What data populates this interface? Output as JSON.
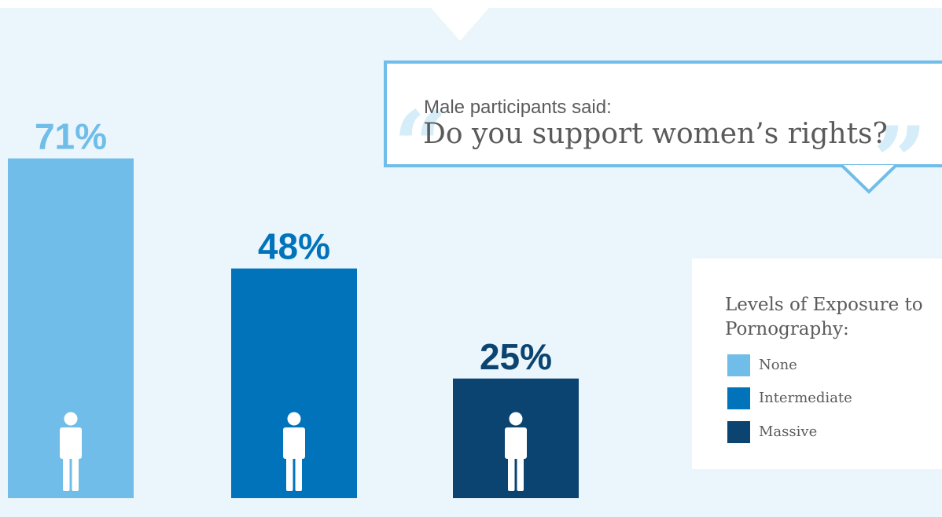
{
  "question": {
    "intro": "Male participants said:",
    "text": "Do you support women’s rights?",
    "open_quote": "“",
    "close_quote": "”"
  },
  "legend": {
    "title": "Levels of Exposure to Pornography:",
    "items": [
      {
        "label": "None",
        "color": "#6fbde8"
      },
      {
        "label": "Intermediate",
        "color": "#0073bb"
      },
      {
        "label": "Massive",
        "color": "#0b4470"
      }
    ]
  },
  "colors": {
    "background": "#eaf5fc",
    "bubble_border": "#6fbde8",
    "figure": "#ffffff",
    "text": "#5b5b5b"
  },
  "chart_data": {
    "type": "bar",
    "categories": [
      "None",
      "Intermediate",
      "Massive"
    ],
    "values": [
      71,
      48,
      25
    ],
    "labels": [
      "71%",
      "48%",
      "25%"
    ],
    "colors": [
      "#6fbde8",
      "#0073bb",
      "#0b4470"
    ],
    "icon": "person-icon",
    "title": "",
    "xlabel": "",
    "ylabel": "",
    "ylim": [
      0,
      100
    ],
    "grid": false,
    "legend_position": "right"
  }
}
